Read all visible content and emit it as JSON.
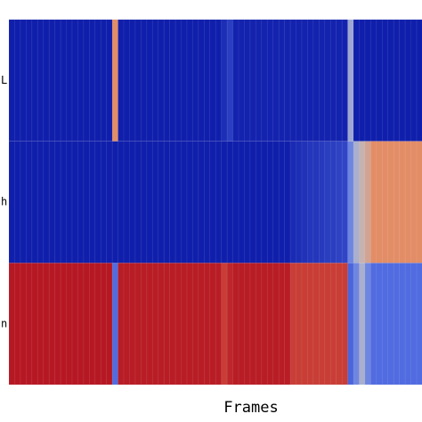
{
  "chart_data": {
    "type": "heatmap",
    "x_label": "Frames",
    "y_categories": [
      "L",
      "h",
      "n"
    ],
    "vlim": [
      0,
      1
    ],
    "colormap": [
      "#0a17a6",
      "#5b78e8",
      "#bdbdc6",
      "#e8875a",
      "#b20e1e"
    ],
    "values": [
      [
        0.02,
        0.02,
        0.02,
        0.02,
        0.02,
        0.02,
        0.02,
        0.02,
        0.02,
        0.02,
        0.02,
        0.02,
        0.02,
        0.02,
        0.02,
        0.02,
        0.02,
        0.02,
        0.72,
        0.02,
        0.02,
        0.02,
        0.02,
        0.02,
        0.02,
        0.02,
        0.02,
        0.02,
        0.02,
        0.02,
        0.02,
        0.02,
        0.02,
        0.02,
        0.02,
        0.02,
        0.02,
        0.06,
        0.1,
        0.03,
        0.03,
        0.03,
        0.03,
        0.03,
        0.03,
        0.03,
        0.03,
        0.03,
        0.03,
        0.03,
        0.03,
        0.03,
        0.03,
        0.03,
        0.03,
        0.03,
        0.03,
        0.03,
        0.03,
        0.42,
        0.02,
        0.02,
        0.02,
        0.02,
        0.02,
        0.02,
        0.02,
        0.02,
        0.02,
        0.02,
        0.02,
        0.02
      ],
      [
        0.02,
        0.02,
        0.02,
        0.02,
        0.02,
        0.02,
        0.02,
        0.02,
        0.02,
        0.02,
        0.02,
        0.02,
        0.02,
        0.02,
        0.02,
        0.02,
        0.02,
        0.02,
        0.02,
        0.02,
        0.02,
        0.02,
        0.02,
        0.02,
        0.02,
        0.02,
        0.02,
        0.02,
        0.02,
        0.02,
        0.02,
        0.02,
        0.02,
        0.02,
        0.02,
        0.02,
        0.02,
        0.02,
        0.02,
        0.02,
        0.02,
        0.02,
        0.02,
        0.02,
        0.02,
        0.02,
        0.02,
        0.02,
        0.02,
        0.05,
        0.06,
        0.07,
        0.08,
        0.08,
        0.09,
        0.1,
        0.1,
        0.11,
        0.12,
        0.3,
        0.45,
        0.55,
        0.62,
        0.72,
        0.72,
        0.72,
        0.72,
        0.72,
        0.72,
        0.72,
        0.72,
        0.72
      ],
      [
        0.98,
        0.98,
        0.98,
        0.98,
        0.98,
        0.98,
        0.98,
        0.98,
        0.98,
        0.98,
        0.98,
        0.98,
        0.98,
        0.98,
        0.98,
        0.98,
        0.98,
        0.98,
        0.22,
        0.97,
        0.97,
        0.97,
        0.97,
        0.97,
        0.97,
        0.97,
        0.97,
        0.97,
        0.97,
        0.97,
        0.97,
        0.97,
        0.97,
        0.97,
        0.97,
        0.97,
        0.97,
        0.9,
        0.95,
        0.97,
        0.97,
        0.97,
        0.97,
        0.97,
        0.97,
        0.97,
        0.97,
        0.97,
        0.97,
        0.9,
        0.9,
        0.9,
        0.9,
        0.9,
        0.9,
        0.9,
        0.9,
        0.9,
        0.9,
        0.2,
        0.3,
        0.45,
        0.3,
        0.22,
        0.22,
        0.22,
        0.22,
        0.22,
        0.22,
        0.22,
        0.22,
        0.22
      ]
    ]
  }
}
